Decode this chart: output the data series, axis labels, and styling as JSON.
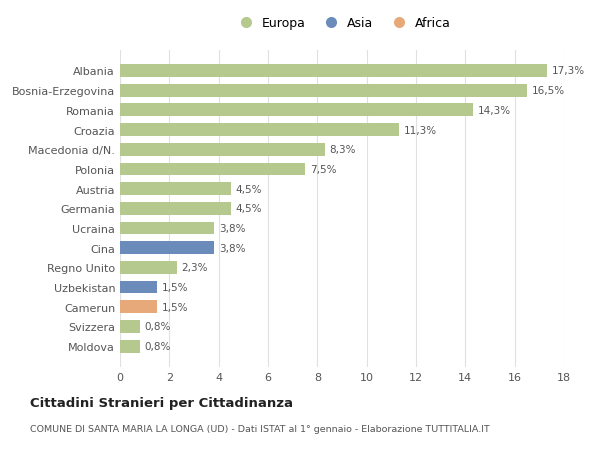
{
  "countries": [
    "Albania",
    "Bosnia-Erzegovina",
    "Romania",
    "Croazia",
    "Macedonia d/N.",
    "Polonia",
    "Austria",
    "Germania",
    "Ucraina",
    "Cina",
    "Regno Unito",
    "Uzbekistan",
    "Camerun",
    "Svizzera",
    "Moldova"
  ],
  "values": [
    17.3,
    16.5,
    14.3,
    11.3,
    8.3,
    7.5,
    4.5,
    4.5,
    3.8,
    3.8,
    2.3,
    1.5,
    1.5,
    0.8,
    0.8
  ],
  "labels": [
    "17,3%",
    "16,5%",
    "14,3%",
    "11,3%",
    "8,3%",
    "7,5%",
    "4,5%",
    "4,5%",
    "3,8%",
    "3,8%",
    "2,3%",
    "1,5%",
    "1,5%",
    "0,8%",
    "0,8%"
  ],
  "colors": [
    "#b5c98e",
    "#b5c98e",
    "#b5c98e",
    "#b5c98e",
    "#b5c98e",
    "#b5c98e",
    "#b5c98e",
    "#b5c98e",
    "#b5c98e",
    "#6b8cba",
    "#b5c98e",
    "#6b8cba",
    "#e8a97a",
    "#b5c98e",
    "#b5c98e"
  ],
  "legend_labels": [
    "Europa",
    "Asia",
    "Africa"
  ],
  "legend_colors": [
    "#b5c98e",
    "#6b8cba",
    "#e8a97a"
  ],
  "xlim": [
    0,
    18
  ],
  "xticks": [
    0,
    2,
    4,
    6,
    8,
    10,
    12,
    14,
    16,
    18
  ],
  "title1": "Cittadini Stranieri per Cittadinanza",
  "title2": "COMUNE DI SANTA MARIA LA LONGA (UD) - Dati ISTAT al 1° gennaio - Elaborazione TUTTITALIA.IT",
  "bg_color": "#ffffff",
  "grid_color": "#e0e0e0",
  "bar_height": 0.65
}
